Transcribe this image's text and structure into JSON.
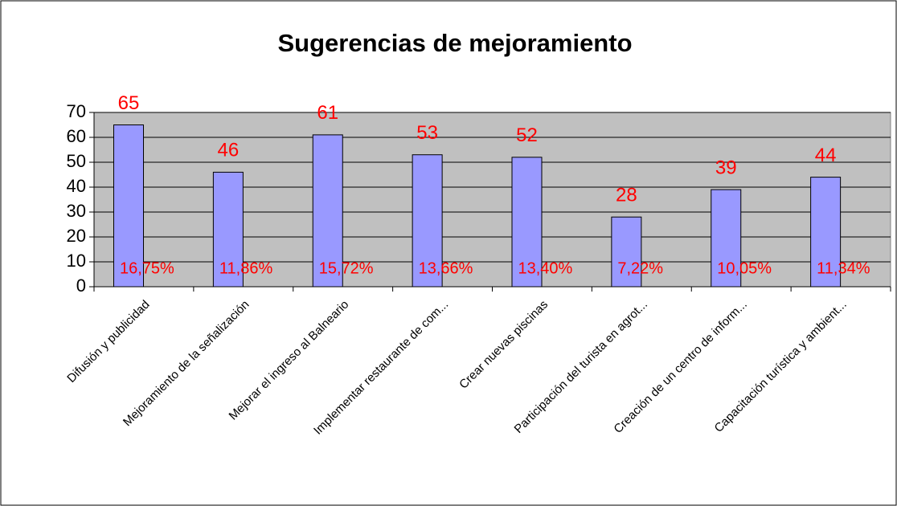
{
  "chart_data": {
    "type": "bar",
    "title": "Sugerencias de mejoramiento",
    "categories": [
      "Difusión y publicidad",
      "Mejoramiento de la señalización",
      "Mejorar el ingreso al Balneario",
      "Implementar restaurante de com...",
      "Crear nuevas piscinas",
      "Participación del turista en agrot...",
      "Creación de un centro de inform...",
      "Capacitación turística y ambient..."
    ],
    "values": [
      65,
      46,
      61,
      53,
      52,
      28,
      39,
      44
    ],
    "percent_labels": [
      "16,75%",
      "11,86%",
      "15,72%",
      "13,66%",
      "13,40%",
      "7,22%",
      "10,05%",
      "11,34%"
    ],
    "color": "#9999ff",
    "label_color": "#ff0000",
    "plot_background": "#c0c0c0",
    "ylim": [
      0,
      70
    ],
    "yticks": [
      0,
      10,
      20,
      30,
      40,
      50,
      60,
      70
    ],
    "grid": true
  }
}
